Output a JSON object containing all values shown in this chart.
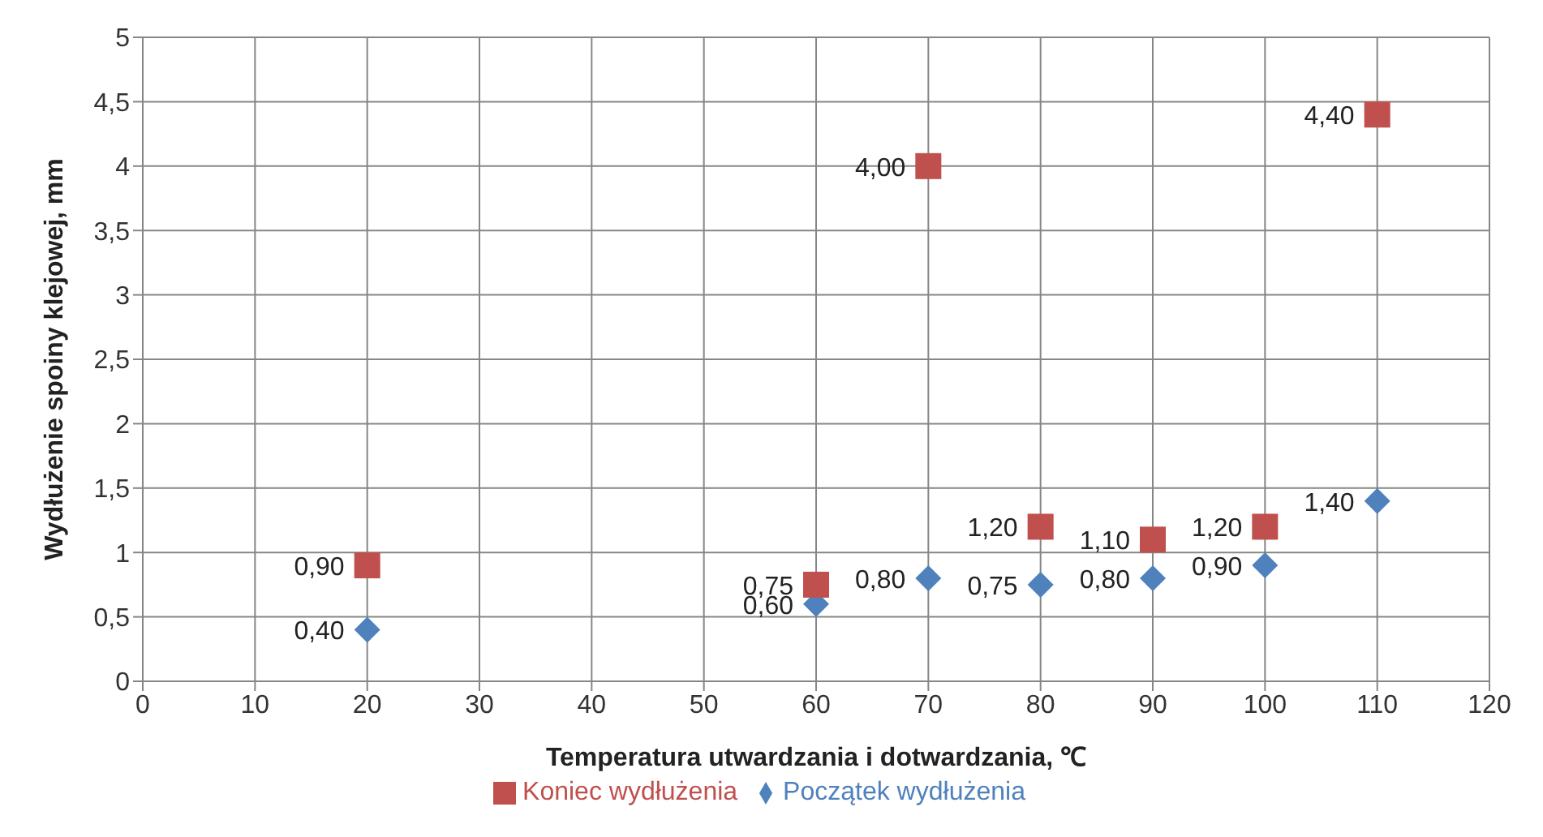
{
  "chart_data": {
    "type": "scatter",
    "xlabel": "Temperatura utwardzania i dotwardzania, ℃",
    "ylabel": "Wydłużenie spoiny klejowej, mm",
    "x": [
      20,
      60,
      70,
      80,
      90,
      100,
      110
    ],
    "series": [
      {
        "name": "Początek wydłużenia",
        "color": "#4f81bd",
        "marker": "diamond",
        "values": [
          0.4,
          0.6,
          0.8,
          0.75,
          0.8,
          0.9,
          1.4
        ],
        "value_labels": [
          "0,40",
          "0,60",
          "0,80",
          "0,75",
          "0,80",
          "0,90",
          "1,40"
        ]
      },
      {
        "name": "Koniec wydłużenia",
        "color": "#c0504d",
        "marker": "square",
        "values": [
          0.9,
          0.75,
          4.0,
          1.2,
          1.1,
          1.2,
          4.4
        ],
        "value_labels": [
          "0,90",
          "0,75",
          "4,00",
          "1,20",
          "1,10",
          "1,20",
          "4,40"
        ]
      }
    ],
    "xlim": [
      0,
      120
    ],
    "xticks": [
      0,
      10,
      20,
      30,
      40,
      50,
      60,
      70,
      80,
      90,
      100,
      110,
      120
    ],
    "ylim": [
      0,
      5
    ],
    "yticks": [
      0,
      {
        "value": 0.5,
        "label": "0,5"
      },
      1,
      {
        "value": 1.5,
        "label": "1,5"
      },
      2,
      {
        "value": 2.5,
        "label": "2,5"
      },
      3,
      {
        "value": 3.5,
        "label": "3,5"
      },
      4,
      {
        "value": 4.5,
        "label": "4,5"
      },
      5
    ],
    "grid": true,
    "legend": "bottom"
  }
}
